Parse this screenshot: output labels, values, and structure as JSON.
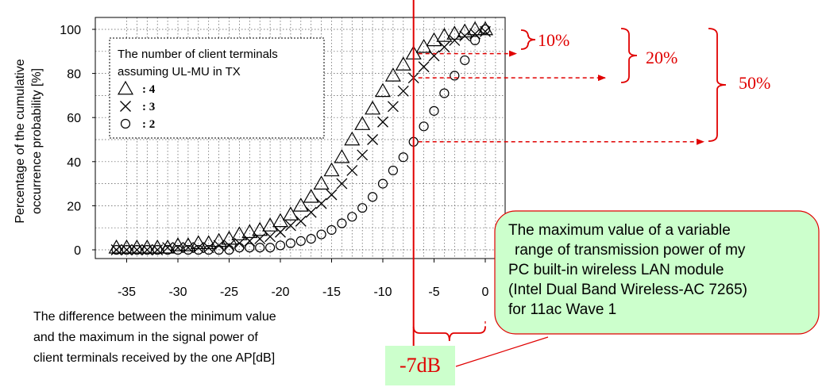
{
  "chart_data": {
    "type": "scatter",
    "ylabel_lines": [
      "Percentage of the cumulative",
      "occurrence probability [%]"
    ],
    "xlabel_lines": [
      "The difference between the minimum  value",
      "and the maximum  in the signal power of",
      "client terminals received by the one AP[dB]"
    ],
    "xlim": [
      -37,
      1
    ],
    "ylim": [
      0,
      100
    ],
    "xticks": [
      "-35",
      "-30",
      "-25",
      "-20",
      "-15",
      "-10",
      "-5",
      "0"
    ],
    "yticks": [
      "0",
      "20",
      "40",
      "60",
      "80",
      "100"
    ],
    "grid": true,
    "legend_title_lines": [
      "The number of client terminals",
      "assuming UL-MU in TX"
    ],
    "legend_position": "top-left",
    "series": [
      {
        "name": "4",
        "marker": "triangle",
        "x": [
          -36,
          -35,
          -34,
          -33,
          -32,
          -31,
          -30,
          -29,
          -28,
          -27,
          -26,
          -25,
          -24,
          -23,
          -22,
          -21,
          -20,
          -19,
          -18,
          -17,
          -16,
          -15,
          -14,
          -13,
          -12,
          -11,
          -10,
          -9,
          -8,
          -7,
          -6,
          -5,
          -4,
          -3,
          -2,
          -1,
          0
        ],
        "y": [
          1,
          1,
          1,
          1,
          1,
          1,
          2,
          2,
          3,
          3,
          4,
          5,
          7,
          8,
          9,
          11,
          13,
          16,
          20,
          24,
          30,
          36,
          42,
          50,
          57,
          64,
          72,
          79,
          84,
          89,
          92,
          95,
          97,
          98,
          99,
          100,
          100
        ]
      },
      {
        "name": "3",
        "marker": "x",
        "x": [
          -36,
          -35,
          -34,
          -33,
          -32,
          -31,
          -30,
          -29,
          -28,
          -27,
          -26,
          -25,
          -24,
          -23,
          -22,
          -21,
          -20,
          -19,
          -18,
          -17,
          -16,
          -15,
          -14,
          -13,
          -12,
          -11,
          -10,
          -9,
          -8,
          -7,
          -6,
          -5,
          -4,
          -3,
          -2,
          -1,
          0
        ],
        "y": [
          0,
          0,
          0,
          0,
          0,
          1,
          1,
          1,
          1,
          1,
          2,
          2,
          3,
          4,
          5,
          6,
          8,
          11,
          13,
          17,
          21,
          25,
          30,
          36,
          43,
          50,
          58,
          65,
          72,
          78,
          83,
          88,
          92,
          95,
          97,
          98,
          99
        ]
      },
      {
        "name": "2",
        "marker": "circle",
        "x": [
          -36,
          -35,
          -34,
          -33,
          -32,
          -31,
          -30,
          -29,
          -28,
          -27,
          -26,
          -25,
          -24,
          -23,
          -22,
          -21,
          -20,
          -19,
          -18,
          -17,
          -16,
          -15,
          -14,
          -13,
          -12,
          -11,
          -10,
          -9,
          -8,
          -7,
          -6,
          -5,
          -4,
          -3,
          -2,
          -1,
          0
        ],
        "y": [
          0,
          0,
          0,
          0,
          0,
          0,
          0,
          0,
          0,
          0,
          0,
          0,
          1,
          1,
          1,
          1,
          2,
          3,
          4,
          5,
          7,
          9,
          12,
          15,
          19,
          24,
          30,
          36,
          42,
          49,
          56,
          63,
          71,
          79,
          86,
          95,
          100
        ]
      }
    ]
  },
  "annotations": {
    "reference_x": -7,
    "reference_label": "-7dB",
    "reference_color": "#e00000",
    "arrow_color": "#e00000",
    "percent_labels": [
      "10%",
      "20%",
      "50%"
    ],
    "callout_lines": [
      "The maximum value of a variable",
      "range of transmission power of my",
      "PC  built-in wireless LAN module",
      "(Intel Dual Band Wireless-AC 7265)",
      "for 11ac Wave 1"
    ],
    "callout_fill": "#ccffcc",
    "callout_border": "#e00000"
  }
}
